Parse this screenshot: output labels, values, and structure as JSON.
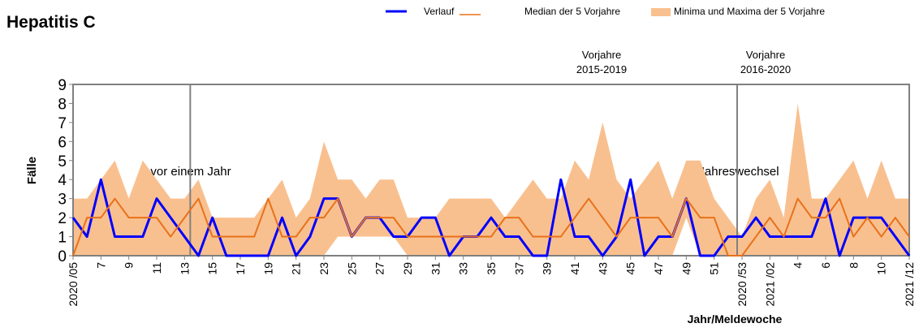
{
  "chart_data": {
    "type": "line",
    "title": "Hepatitis C",
    "y_label": "Fälle",
    "x_label": "Jahr/Meldewoche",
    "annotations": [
      "vor einem Jahr",
      "Jahreswechsel",
      "Vorjahre",
      "2015-2019",
      "Vorjahre",
      "2016-2020"
    ],
    "categories": [
      "2020 /05",
      null,
      "7",
      null,
      "9",
      null,
      "11",
      null,
      "13",
      null,
      "15",
      null,
      "17",
      null,
      "19",
      null,
      "21",
      null,
      "23",
      null,
      "25",
      null,
      "27",
      null,
      "29",
      null,
      "31",
      null,
      "33",
      null,
      "35",
      null,
      "37",
      null,
      "39",
      null,
      "41",
      null,
      "43",
      null,
      "45",
      null,
      "47",
      null,
      "49",
      null,
      "51",
      null,
      "2020 /53",
      null,
      "2021 /02",
      null,
      "4",
      null,
      "6",
      null,
      "8",
      null,
      "10",
      null,
      "2021 /12"
    ],
    "band": {
      "name": "Minima und Maxima der 5 Vorjahre",
      "color": "#f9c08f",
      "min": [
        0,
        0,
        0,
        0,
        0,
        0,
        0,
        0,
        0,
        0,
        0,
        0,
        0,
        0,
        0,
        0,
        0,
        0,
        0,
        1,
        1,
        1,
        1,
        1,
        0,
        0,
        0,
        0,
        0,
        0,
        0,
        0,
        0,
        0,
        0,
        0,
        0,
        0,
        0,
        0,
        0,
        0,
        0,
        0,
        2,
        0,
        0,
        0,
        0,
        0,
        0,
        0,
        0,
        0,
        0,
        0,
        0,
        0,
        0,
        0,
        0
      ],
      "max": [
        3,
        3,
        4,
        5,
        3,
        5,
        4,
        3,
        3,
        4,
        2,
        2,
        2,
        2,
        3,
        4,
        2,
        3,
        6,
        4,
        4,
        3,
        4,
        4,
        2,
        2,
        2,
        3,
        3,
        3,
        3,
        2,
        3,
        4,
        3,
        3,
        5,
        4,
        7,
        4,
        3,
        4,
        5,
        3,
        5,
        5,
        3,
        2,
        1,
        3,
        4,
        2,
        8,
        3,
        3,
        4,
        5,
        3,
        5,
        3,
        3
      ]
    },
    "series": [
      {
        "name": "Verlauf",
        "color": "#0000ff",
        "values": [
          2,
          1,
          4,
          1,
          1,
          1,
          3,
          2,
          1,
          0,
          2,
          0,
          0,
          0,
          0,
          2,
          0,
          1,
          3,
          3,
          1,
          2,
          2,
          1,
          1,
          2,
          2,
          0,
          1,
          1,
          2,
          1,
          1,
          0,
          0,
          4,
          1,
          1,
          0,
          1,
          4,
          0,
          1,
          1,
          3,
          0,
          0,
          1,
          1,
          2,
          1,
          1,
          1,
          1,
          3,
          0,
          2,
          2,
          2,
          1,
          0
        ]
      },
      {
        "name": "Median der 5 Vorjahre",
        "color": "#e8711a",
        "values": [
          0,
          2,
          2,
          3,
          2,
          2,
          2,
          1,
          2,
          3,
          1,
          1,
          1,
          1,
          3,
          1,
          1,
          2,
          2,
          3,
          1,
          2,
          2,
          2,
          1,
          1,
          1,
          1,
          1,
          1,
          1,
          2,
          2,
          1,
          1,
          1,
          2,
          3,
          2,
          1,
          2,
          2,
          2,
          1,
          3,
          2,
          2,
          0,
          0,
          1,
          2,
          1,
          3,
          2,
          2,
          3,
          1,
          2,
          1,
          2,
          1
        ]
      }
    ],
    "ylim": [
      0,
      9
    ],
    "yticks": [
      0,
      1,
      2,
      3,
      4,
      5,
      6,
      7,
      8,
      9
    ]
  }
}
